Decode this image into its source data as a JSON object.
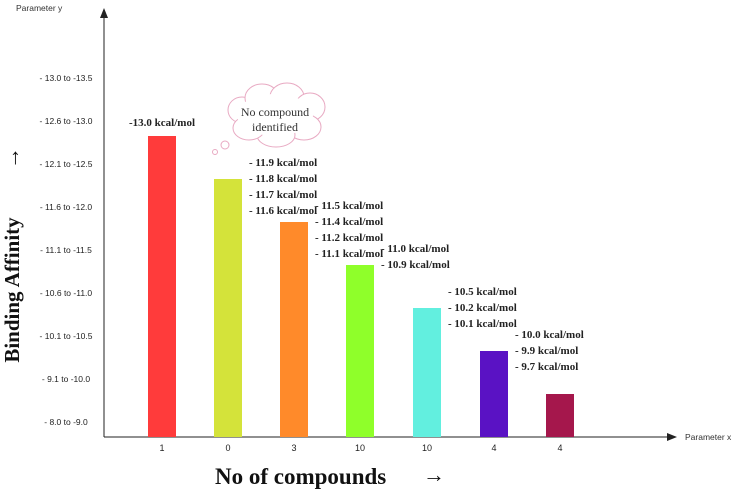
{
  "chart_data": {
    "type": "bar",
    "x_axis_name": "Parameter x",
    "y_axis_name": "Parameter y",
    "xlabel": "No of compounds",
    "ylabel": "Binding Affinity",
    "xlabel_arrow": "→",
    "ylabel_arrow": "→",
    "y_ticks": [
      "- 8.0 to -9.0",
      "- 9.1 to -10.0",
      "- 10.1 to -10.5",
      "- 10.6 to -11.0",
      "- 11.1 to -11.5",
      "- 11.6 to -12.0",
      "- 12.1 to -12.5",
      "- 12.6 to -13.0",
      "- 13.0 to -13.5"
    ],
    "categories": [
      "1",
      "0",
      "3",
      "10",
      "10",
      "4",
      "4"
    ],
    "values": [
      7,
      6,
      5,
      4,
      3,
      2,
      1
    ],
    "colors": [
      "#ff3b3b",
      "#d4e33a",
      "#ff8a2a",
      "#8fff2a",
      "#62efdf",
      "#5a12c4",
      "#a5174c"
    ],
    "bar_labels": [
      [
        "-13.0 kcal/mol"
      ],
      [
        "- 11.9 kcal/mol",
        "- 11.8 kcal/mol",
        "- 11.7 kcal/mol",
        "- 11.6 kcal/mol"
      ],
      [
        "- 11.5 kcal/mol",
        "- 11.4 kcal/mol",
        "- 11.2 kcal/mol",
        "- 11.1 kcal/mol"
      ],
      [
        "- 11.0 kcal/mol",
        "- 10.9 kcal/mol"
      ],
      [
        "- 10.5 kcal/mol",
        "- 10.2 kcal/mol",
        "- 10.1 kcal/mol"
      ],
      [
        "- 10.0 kcal/mol",
        "- 9.9 kcal/mol",
        "- 9.7 kcal/mol"
      ],
      []
    ],
    "annotation": [
      "No compound",
      "identified"
    ],
    "grid": false,
    "legend": "none"
  }
}
